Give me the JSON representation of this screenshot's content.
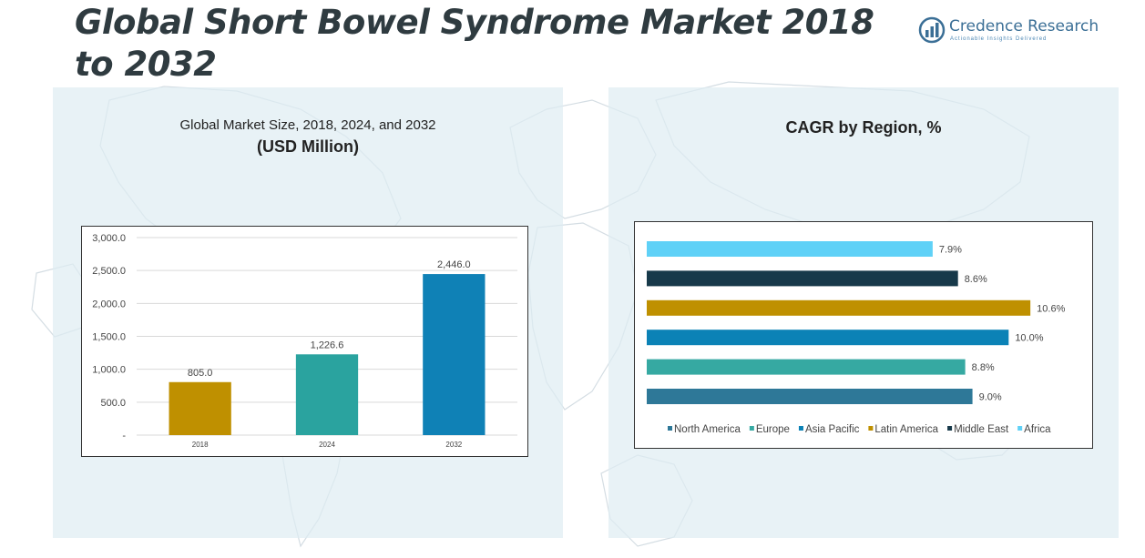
{
  "page": {
    "title": "Global Short Bowel Syndrome Market 2018 to 2032",
    "logo_name": "Credence Research",
    "logo_tagline": "Actionable Insights Delivered"
  },
  "left_panel": {
    "subtitle": "Global Market Size, 2018, 2024, and 2032",
    "unit": "(USD Million)"
  },
  "right_panel": {
    "heading": "CAGR by Region, %"
  },
  "chart_data": [
    {
      "type": "bar",
      "title": "Global Market Size, 2018, 2024, and 2032",
      "ylabel": "(USD Million)",
      "categories": [
        "2018",
        "2024",
        "2032"
      ],
      "values": [
        805.0,
        1226.6,
        2446.0
      ],
      "data_labels": [
        "805.0",
        "1,226.6",
        "2,446.0"
      ],
      "colors": [
        "#bf9000",
        "#2aa39f",
        "#0f81b6"
      ],
      "ylim": [
        0,
        3000
      ],
      "yticks": [
        0,
        500,
        1000,
        1500,
        2000,
        2500,
        3000
      ],
      "ytick_labels": [
        "-",
        "500.0",
        "1,000.0",
        "1,500.0",
        "2,000.0",
        "2,500.0",
        "3,000.0"
      ],
      "grid": true
    },
    {
      "type": "bar",
      "orientation": "horizontal",
      "title": "CAGR by Region, %",
      "categories": [
        "North America",
        "Europe",
        "Asia Pacific",
        "Latin America",
        "Middle East",
        "Africa"
      ],
      "values": [
        9.0,
        8.8,
        10.0,
        10.6,
        8.6,
        7.9
      ],
      "data_labels": [
        "9.0%",
        "8.8%",
        "10.0%",
        "10.6%",
        "8.6%",
        "7.9%"
      ],
      "colors": [
        "#2e7898",
        "#36a9a2",
        "#0b82b6",
        "#bf9000",
        "#17394a",
        "#5fd1f7"
      ],
      "xlim": [
        0,
        11.2
      ],
      "legend": "bottom",
      "grid": false
    }
  ]
}
